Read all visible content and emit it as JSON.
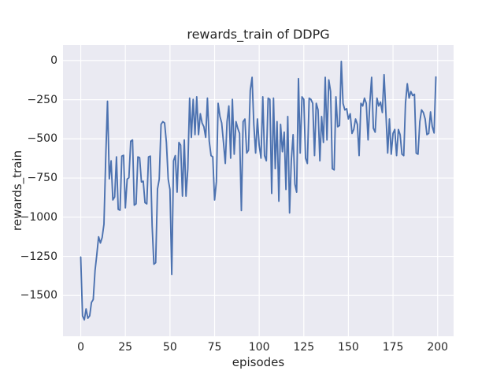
{
  "figure": {
    "background": "#FFFFFF",
    "axes_background": "#EAEAF2",
    "grid_color": "#FFFFFF",
    "text_color": "#262626",
    "line_color": "#4C72B0"
  },
  "chart_data": {
    "type": "line",
    "title": "rewards_train of DDPG",
    "xlabel": "episodes",
    "ylabel": "rewards_train",
    "grid": true,
    "legend": "none",
    "xlim": [
      -9.95,
      208.95
    ],
    "ylim": [
      -1760,
      100
    ],
    "xticks": [
      0,
      25,
      50,
      75,
      100,
      125,
      150,
      175,
      200
    ],
    "xtick_labels": [
      "0",
      "25",
      "50",
      "75",
      "100",
      "125",
      "150",
      "175",
      "200"
    ],
    "yticks": [
      0,
      -250,
      -500,
      -750,
      -1000,
      -1250,
      -1500
    ],
    "ytick_labels": [
      "0",
      "−250",
      "−500",
      "−750",
      "−1000",
      "−1250",
      "−1500"
    ],
    "series": [
      {
        "name": "rewards_train",
        "x_start": 0,
        "x_step": 1,
        "values": [
          -1255,
          -1630,
          -1655,
          -1585,
          -1645,
          -1630,
          -1545,
          -1525,
          -1340,
          -1240,
          -1125,
          -1165,
          -1130,
          -1045,
          -615,
          -260,
          -755,
          -640,
          -890,
          -870,
          -615,
          -950,
          -955,
          -610,
          -605,
          -940,
          -757,
          -748,
          -515,
          -507,
          -923,
          -915,
          -615,
          -620,
          -775,
          -770,
          -907,
          -915,
          -615,
          -610,
          -1055,
          -1300,
          -1290,
          -820,
          -757,
          -407,
          -390,
          -398,
          -523,
          -757,
          -823,
          -1365,
          -640,
          -607,
          -840,
          -523,
          -540,
          -865,
          -507,
          -865,
          -690,
          -240,
          -490,
          -248,
          -473,
          -232,
          -473,
          -340,
          -398,
          -423,
          -490,
          -240,
          -515,
          -607,
          -615,
          -890,
          -773,
          -273,
          -357,
          -398,
          -523,
          -657,
          -390,
          -290,
          -623,
          -248,
          -598,
          -390,
          -432,
          -465,
          -957,
          -390,
          -373,
          -590,
          -573,
          -190,
          -107,
          -407,
          -590,
          -373,
          -540,
          -623,
          -232,
          -607,
          -640,
          -240,
          -248,
          -848,
          -240,
          -690,
          -390,
          -898,
          -407,
          -582,
          -457,
          -823,
          -357,
          -973,
          -640,
          -473,
          -790,
          -840,
          -115,
          -590,
          -232,
          -248,
          -623,
          -657,
          -240,
          -248,
          -273,
          -607,
          -273,
          -315,
          -640,
          -357,
          -523,
          -107,
          -507,
          -123,
          -198,
          -690,
          -698,
          -232,
          -423,
          -415,
          -5,
          -273,
          -315,
          -307,
          -373,
          -340,
          -465,
          -440,
          -373,
          -407,
          -607,
          -273,
          -290,
          -240,
          -273,
          -507,
          -273,
          -107,
          -432,
          -457,
          -240,
          -290,
          -265,
          -332,
          -90,
          -332,
          -590,
          -373,
          -598,
          -465,
          -440,
          -607,
          -440,
          -473,
          -598,
          -607,
          -273,
          -148,
          -240,
          -198,
          -223,
          -215,
          -590,
          -598,
          -390,
          -315,
          -332,
          -373,
          -473,
          -465,
          -328,
          -421,
          -462,
          -105
        ]
      }
    ]
  }
}
